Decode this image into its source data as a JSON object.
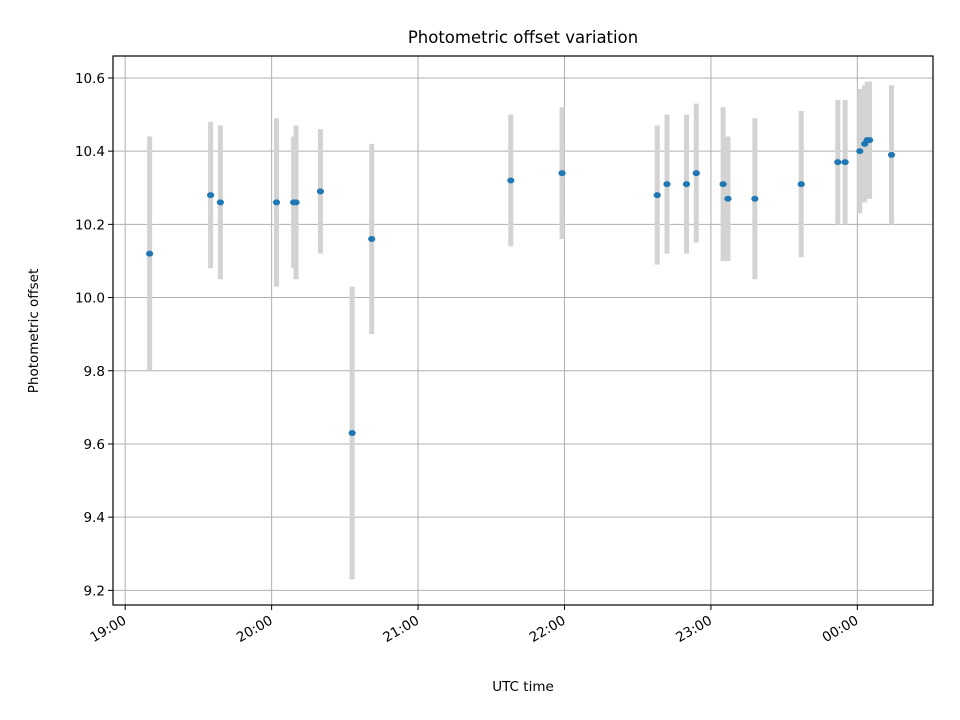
{
  "chart_data": {
    "type": "scatter",
    "title": "Photometric offset variation",
    "xlabel": "UTC time",
    "ylabel": "Photometric offset",
    "grid": true,
    "x_unit": "UTC clock time (hours after 00:00 wrap to next day)",
    "xlim": [
      "18:55",
      "00:31"
    ],
    "ylim": [
      9.16,
      10.66
    ],
    "x_tick_labels": [
      "19:00",
      "20:00",
      "21:00",
      "22:00",
      "23:00",
      "00:00"
    ],
    "y_tick_labels": [
      "9.2",
      "9.4",
      "9.6",
      "9.8",
      "10.0",
      "10.2",
      "10.4",
      "10.6"
    ],
    "colors": {
      "points": "#1f77b4",
      "errorbars": "#d3d3d3",
      "grid": "#b0b0b0"
    },
    "series": [
      {
        "x": [
          "19:10",
          "19:35",
          "19:39",
          "20:02",
          "20:09",
          "20:10",
          "20:20",
          "20:33",
          "20:41",
          "21:38",
          "21:59",
          "22:38",
          "22:42",
          "22:50",
          "22:54",
          "23:05",
          "23:07",
          "23:18",
          "23:37",
          "23:52",
          "23:55",
          "00:01",
          "00:03",
          "00:04",
          "00:05",
          "00:14"
        ],
        "y": [
          10.12,
          10.28,
          10.26,
          10.26,
          10.26,
          10.26,
          10.29,
          9.63,
          10.16,
          10.32,
          10.34,
          10.28,
          10.31,
          10.31,
          10.34,
          10.31,
          10.27,
          10.27,
          10.31,
          10.37,
          10.37,
          10.4,
          10.42,
          10.43,
          10.43,
          10.39
        ],
        "yerr": [
          0.32,
          0.2,
          0.21,
          0.23,
          0.18,
          0.21,
          0.17,
          0.4,
          0.26,
          0.18,
          0.18,
          0.19,
          0.19,
          0.19,
          0.19,
          0.21,
          0.17,
          0.22,
          0.2,
          0.17,
          0.17,
          0.17,
          0.16,
          0.16,
          0.16,
          0.19
        ]
      }
    ]
  }
}
